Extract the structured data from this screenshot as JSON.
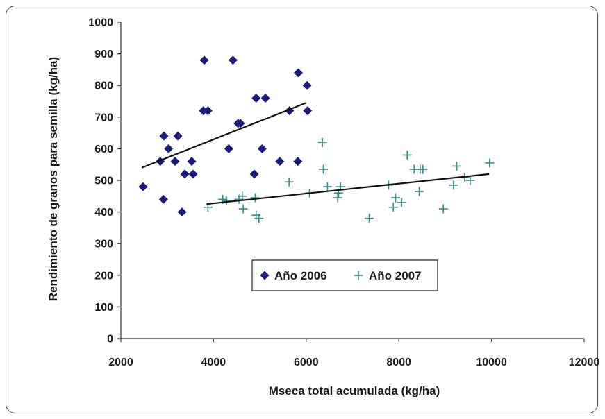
{
  "chart_data": {
    "type": "scatter",
    "xlabel": "Mseca total acumulada (kg/ha)",
    "ylabel": "Rendimiento de granos para semilla (kg/ha)",
    "xlim": [
      2000,
      12000
    ],
    "ylim": [
      0,
      1000
    ],
    "xticks": [
      "2000",
      "4000",
      "6000",
      "8000",
      "10000",
      "12000"
    ],
    "yticks": [
      "0",
      "100",
      "200",
      "300",
      "400",
      "500",
      "600",
      "700",
      "800",
      "900",
      "1000"
    ],
    "legend_position": "inside-lower-center",
    "series": [
      {
        "name": "Año 2006",
        "marker": "diamond",
        "color": "#1a1a7a",
        "points": [
          [
            2480,
            480
          ],
          [
            2850,
            560
          ],
          [
            2930,
            640
          ],
          [
            2920,
            440
          ],
          [
            3030,
            600
          ],
          [
            3170,
            560
          ],
          [
            3230,
            640
          ],
          [
            3320,
            400
          ],
          [
            3380,
            520
          ],
          [
            3530,
            560
          ],
          [
            3560,
            520
          ],
          [
            3800,
            880
          ],
          [
            3780,
            720
          ],
          [
            3880,
            720
          ],
          [
            4330,
            600
          ],
          [
            4420,
            880
          ],
          [
            4530,
            680
          ],
          [
            4580,
            680
          ],
          [
            4880,
            520
          ],
          [
            4920,
            760
          ],
          [
            5050,
            600
          ],
          [
            5120,
            760
          ],
          [
            5430,
            560
          ],
          [
            5640,
            720
          ],
          [
            5830,
            840
          ],
          [
            5820,
            560
          ],
          [
            6020,
            800
          ],
          [
            6030,
            720
          ]
        ],
        "trend": [
          [
            2450,
            540
          ],
          [
            6000,
            745
          ]
        ]
      },
      {
        "name": "Año 2007",
        "marker": "plus",
        "color": "#2e8b8b",
        "points": [
          [
            3880,
            415
          ],
          [
            4200,
            440
          ],
          [
            4280,
            435
          ],
          [
            4550,
            440
          ],
          [
            4620,
            450
          ],
          [
            4640,
            410
          ],
          [
            4900,
            445
          ],
          [
            4920,
            390
          ],
          [
            4980,
            380
          ],
          [
            5630,
            495
          ],
          [
            6070,
            460
          ],
          [
            6350,
            620
          ],
          [
            6370,
            535
          ],
          [
            6460,
            480
          ],
          [
            6680,
            445
          ],
          [
            6700,
            460
          ],
          [
            6740,
            480
          ],
          [
            7360,
            380
          ],
          [
            7780,
            485
          ],
          [
            7880,
            415
          ],
          [
            7930,
            445
          ],
          [
            8060,
            430
          ],
          [
            8180,
            580
          ],
          [
            8330,
            535
          ],
          [
            8440,
            465
          ],
          [
            8460,
            535
          ],
          [
            8520,
            535
          ],
          [
            8960,
            410
          ],
          [
            9180,
            485
          ],
          [
            9250,
            545
          ],
          [
            9420,
            510
          ],
          [
            9540,
            500
          ],
          [
            9960,
            555
          ]
        ],
        "trend": [
          [
            3850,
            425
          ],
          [
            9950,
            520
          ]
        ]
      }
    ]
  }
}
